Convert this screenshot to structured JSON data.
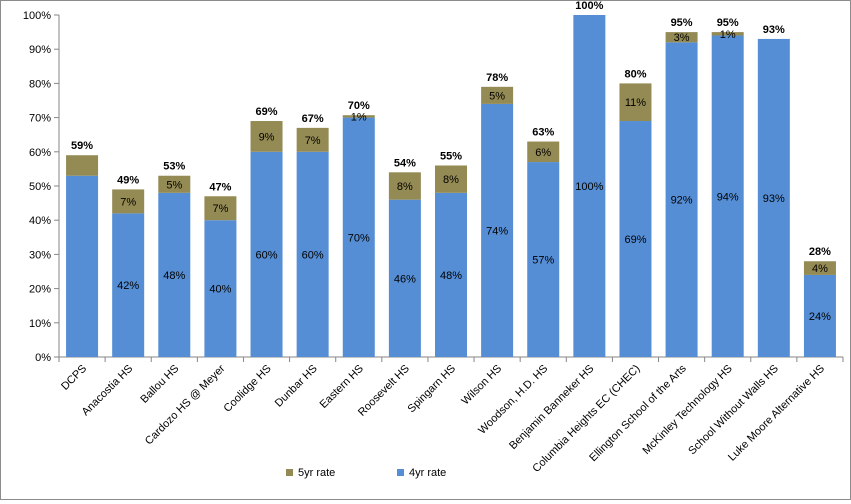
{
  "chart_data": {
    "type": "bar",
    "stacked": true,
    "categories": [
      "DCPS",
      "Anacostia HS",
      "Ballou HS",
      "Cardozo HS @ Meyer",
      "Coolidge HS",
      "Dunbar HS",
      "Eastern HS",
      "Roosevelt HS",
      "Spingarn HS",
      "Wilson HS",
      "Woodson, H.D. HS",
      "Benjamin Banneker HS",
      "Columbia Heights EC (CHEC)",
      "Ellington School of the Arts",
      "McKinley Technology HS",
      "School Without Walls HS",
      "Luke Moore Alternative HS"
    ],
    "series": [
      {
        "name": "4yr rate",
        "color": "#558ED5",
        "values": [
          53,
          42,
          48,
          40,
          60,
          60,
          70,
          46,
          48,
          74,
          57,
          100,
          69,
          92,
          94,
          93,
          24
        ],
        "labels": [
          "",
          "42%",
          "48%",
          "40%",
          "60%",
          "60%",
          "70%",
          "46%",
          "48%",
          "74%",
          "57%",
          "100%",
          "69%",
          "92%",
          "94%",
          "93%",
          "24%"
        ]
      },
      {
        "name": "5yr rate",
        "color": "#948A54",
        "values": [
          6,
          7,
          5,
          7,
          9,
          7,
          0.7,
          8,
          8,
          5,
          6,
          0,
          11,
          3,
          1,
          0,
          4
        ],
        "labels": [
          "",
          "7%",
          "5%",
          "7%",
          "9%",
          "7%",
          "1%",
          "8%",
          "8%",
          "5%",
          "6%",
          "",
          "11%",
          "3%",
          "1%",
          "",
          "4%"
        ]
      }
    ],
    "totals": [
      "59%",
      "49%",
      "53%",
      "47%",
      "69%",
      "67%",
      "70%",
      "54%",
      "55%",
      "78%",
      "63%",
      "100%",
      "80%",
      "95%",
      "95%",
      "93%",
      "28%"
    ],
    "y_ticks": [
      "0%",
      "10%",
      "20%",
      "30%",
      "40%",
      "50%",
      "60%",
      "70%",
      "80%",
      "90%",
      "100%"
    ],
    "ylim": [
      0,
      100
    ],
    "grid": false,
    "legend": {
      "position": "bottom",
      "entries": [
        {
          "label": "5yr rate",
          "color": "#948A54"
        },
        {
          "label": "4yr rate",
          "color": "#558ED5"
        }
      ]
    }
  }
}
